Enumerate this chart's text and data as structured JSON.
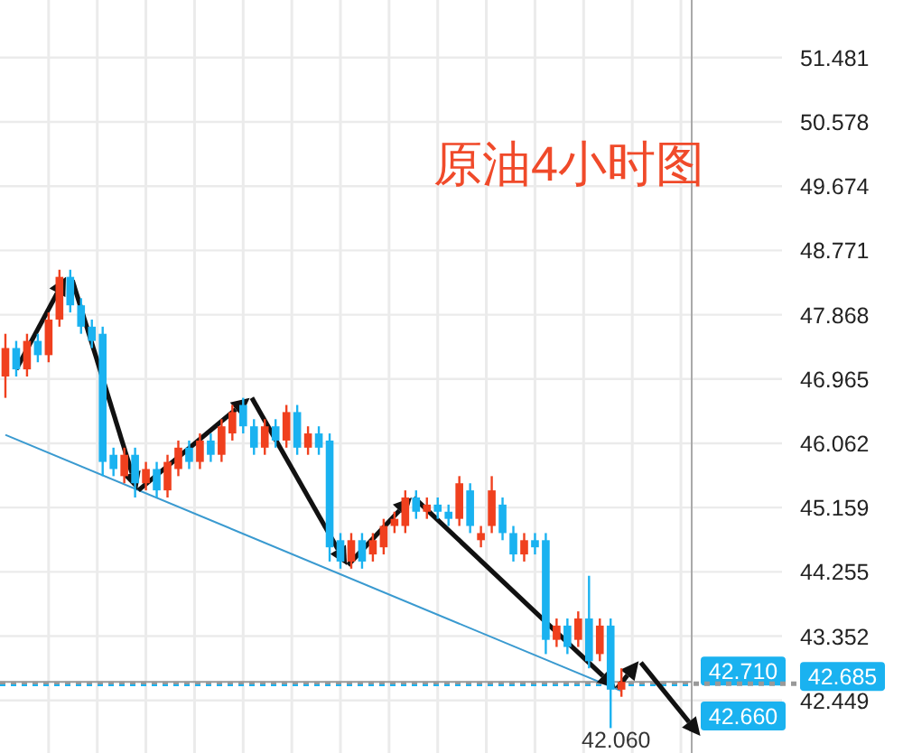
{
  "chart_data": {
    "type": "candlestick",
    "title": "原油4小时图",
    "categories": [
      null,
      null,
      null,
      null,
      null,
      null,
      null,
      null,
      null,
      null,
      null,
      null,
      null,
      null,
      null,
      null,
      null,
      null,
      null,
      null,
      null,
      null,
      null,
      null,
      null,
      null,
      null,
      null,
      null,
      null,
      null,
      null,
      null,
      null,
      null,
      null,
      null,
      null,
      null,
      null,
      null,
      null,
      null,
      null,
      null,
      null,
      null,
      null,
      null,
      null,
      null,
      null,
      null,
      null,
      null,
      null,
      null,
      null,
      null,
      null,
      null,
      null,
      null,
      null
    ],
    "ohlc": [
      [
        47.0,
        47.6,
        46.7,
        47.4
      ],
      [
        47.4,
        47.5,
        47.0,
        47.1
      ],
      [
        47.1,
        47.6,
        47.0,
        47.5
      ],
      [
        47.5,
        47.6,
        47.2,
        47.3
      ],
      [
        47.3,
        47.9,
        47.2,
        47.8
      ],
      [
        47.8,
        48.5,
        47.7,
        48.4
      ],
      [
        48.4,
        48.5,
        47.9,
        48.0
      ],
      [
        48.0,
        48.1,
        47.6,
        47.7
      ],
      [
        47.7,
        47.8,
        47.4,
        47.5
      ],
      [
        47.6,
        47.7,
        45.6,
        45.8
      ],
      [
        45.9,
        46.0,
        45.6,
        45.7
      ],
      [
        45.6,
        46.0,
        45.5,
        45.9
      ],
      [
        45.9,
        46.0,
        45.3,
        45.5
      ],
      [
        45.5,
        45.8,
        45.4,
        45.7
      ],
      [
        45.7,
        45.8,
        45.3,
        45.4
      ],
      [
        45.4,
        45.9,
        45.3,
        45.8
      ],
      [
        45.7,
        46.1,
        45.6,
        46.0
      ],
      [
        46.0,
        46.1,
        45.7,
        45.8
      ],
      [
        45.8,
        46.2,
        45.7,
        46.1
      ],
      [
        46.1,
        46.2,
        45.8,
        45.9
      ],
      [
        45.9,
        46.4,
        45.8,
        46.3
      ],
      [
        46.2,
        46.6,
        46.1,
        46.5
      ],
      [
        46.6,
        46.7,
        46.2,
        46.3
      ],
      [
        46.3,
        46.4,
        45.9,
        46.0
      ],
      [
        46.0,
        46.4,
        45.9,
        46.3
      ],
      [
        46.3,
        46.4,
        46.0,
        46.1
      ],
      [
        46.1,
        46.6,
        46.0,
        46.5
      ],
      [
        46.5,
        46.6,
        45.9,
        46.0
      ],
      [
        46.0,
        46.3,
        45.9,
        46.2
      ],
      [
        46.2,
        46.3,
        45.9,
        46.0
      ],
      [
        46.1,
        46.2,
        44.4,
        44.6
      ],
      [
        44.7,
        44.8,
        44.3,
        44.4
      ],
      [
        44.4,
        44.8,
        44.3,
        44.7
      ],
      [
        44.7,
        44.8,
        44.3,
        44.4
      ],
      [
        44.5,
        44.8,
        44.4,
        44.7
      ],
      [
        44.6,
        45.0,
        44.5,
        44.9
      ],
      [
        44.9,
        45.1,
        44.8,
        45.0
      ],
      [
        44.9,
        45.4,
        44.8,
        45.3
      ],
      [
        45.3,
        45.4,
        45.0,
        45.1
      ],
      [
        45.1,
        45.3,
        45.0,
        45.2
      ],
      [
        45.2,
        45.3,
        45.0,
        45.1
      ],
      [
        45.1,
        45.2,
        44.9,
        45.0
      ],
      [
        45.0,
        45.6,
        44.9,
        45.5
      ],
      [
        45.4,
        45.5,
        44.8,
        44.9
      ],
      [
        44.7,
        44.9,
        44.6,
        44.8
      ],
      [
        44.9,
        45.6,
        44.8,
        45.4
      ],
      [
        45.2,
        45.3,
        44.7,
        44.8
      ],
      [
        44.8,
        44.9,
        44.4,
        44.5
      ],
      [
        44.5,
        44.8,
        44.4,
        44.7
      ],
      [
        44.7,
        44.8,
        44.5,
        44.6
      ],
      [
        44.7,
        44.8,
        43.1,
        43.3
      ],
      [
        43.3,
        43.6,
        43.2,
        43.5
      ],
      [
        43.5,
        43.6,
        43.1,
        43.2
      ],
      [
        43.3,
        43.7,
        43.2,
        43.6
      ],
      [
        43.6,
        44.2,
        42.9,
        43.0
      ],
      [
        43.1,
        43.6,
        43.0,
        43.5
      ],
      [
        43.5,
        43.6,
        42.06,
        42.6
      ],
      [
        42.6,
        42.9,
        42.5,
        42.71
      ],
      null,
      null,
      null,
      null,
      null,
      null
    ],
    "colors": [
      "#f0401e",
      "#1ab2f0",
      "#f0401e",
      "#1ab2f0",
      "#f0401e",
      "#f0401e",
      "#1ab2f0",
      "#1ab2f0",
      "#1ab2f0",
      "#1ab2f0",
      "#1ab2f0",
      "#f0401e",
      "#1ab2f0",
      "#f0401e",
      "#1ab2f0",
      "#f0401e",
      "#f0401e",
      "#1ab2f0",
      "#f0401e",
      "#1ab2f0",
      "#f0401e",
      "#f0401e",
      "#1ab2f0",
      "#1ab2f0",
      "#f0401e",
      "#1ab2f0",
      "#f0401e",
      "#1ab2f0",
      "#f0401e",
      "#1ab2f0",
      "#1ab2f0",
      "#1ab2f0",
      "#f0401e",
      "#1ab2f0",
      "#f0401e",
      "#f0401e",
      "#f0401e",
      "#f0401e",
      "#1ab2f0",
      "#f0401e",
      "#1ab2f0",
      "#1ab2f0",
      "#f0401e",
      "#1ab2f0",
      "#f0401e",
      "#f0401e",
      "#1ab2f0",
      "#1ab2f0",
      "#f0401e",
      "#1ab2f0",
      "#1ab2f0",
      "#f0401e",
      "#1ab2f0",
      "#f0401e",
      "#1ab2f0",
      "#f0401e",
      "#1ab2f0",
      "#f0401e",
      null,
      null,
      null,
      null,
      null,
      null
    ],
    "series": [
      {
        "type": "line",
        "color": "#3a9ad0",
        "values": [
          46.18,
          null,
          null,
          null,
          null,
          null,
          null,
          null,
          null,
          null,
          null,
          null,
          null,
          null,
          null,
          null,
          null,
          null,
          null,
          null,
          null,
          null,
          null,
          null,
          null,
          null,
          null,
          null,
          null,
          null,
          null,
          null,
          null,
          null,
          null,
          null,
          null,
          null,
          null,
          null,
          null,
          null,
          null,
          null,
          null,
          null,
          null,
          null,
          null,
          null,
          null,
          null,
          null,
          null,
          null,
          null,
          null,
          42.58,
          null,
          null,
          null,
          null,
          null,
          null
        ]
      }
    ],
    "ylim": [
      41.71,
      52.29
    ],
    "yticks": [
      51.481,
      50.578,
      49.674,
      48.771,
      47.868,
      46.965,
      46.062,
      45.159,
      44.255,
      43.352,
      42.449
    ],
    "grid": true,
    "ref_lines": [
      {
        "axis": "y",
        "value": 42.71,
        "label": "42.710",
        "color": "#999999",
        "line_style": "solid"
      },
      {
        "axis": "y",
        "value": 42.685,
        "label": "42.685",
        "color": "#999999",
        "line_style": "dotted"
      },
      {
        "axis": "y",
        "value": 42.66,
        "label": "42.660",
        "color": "#1ab2f0",
        "line_style": "dotted"
      }
    ],
    "annotations": [
      "42.060"
    ]
  }
}
